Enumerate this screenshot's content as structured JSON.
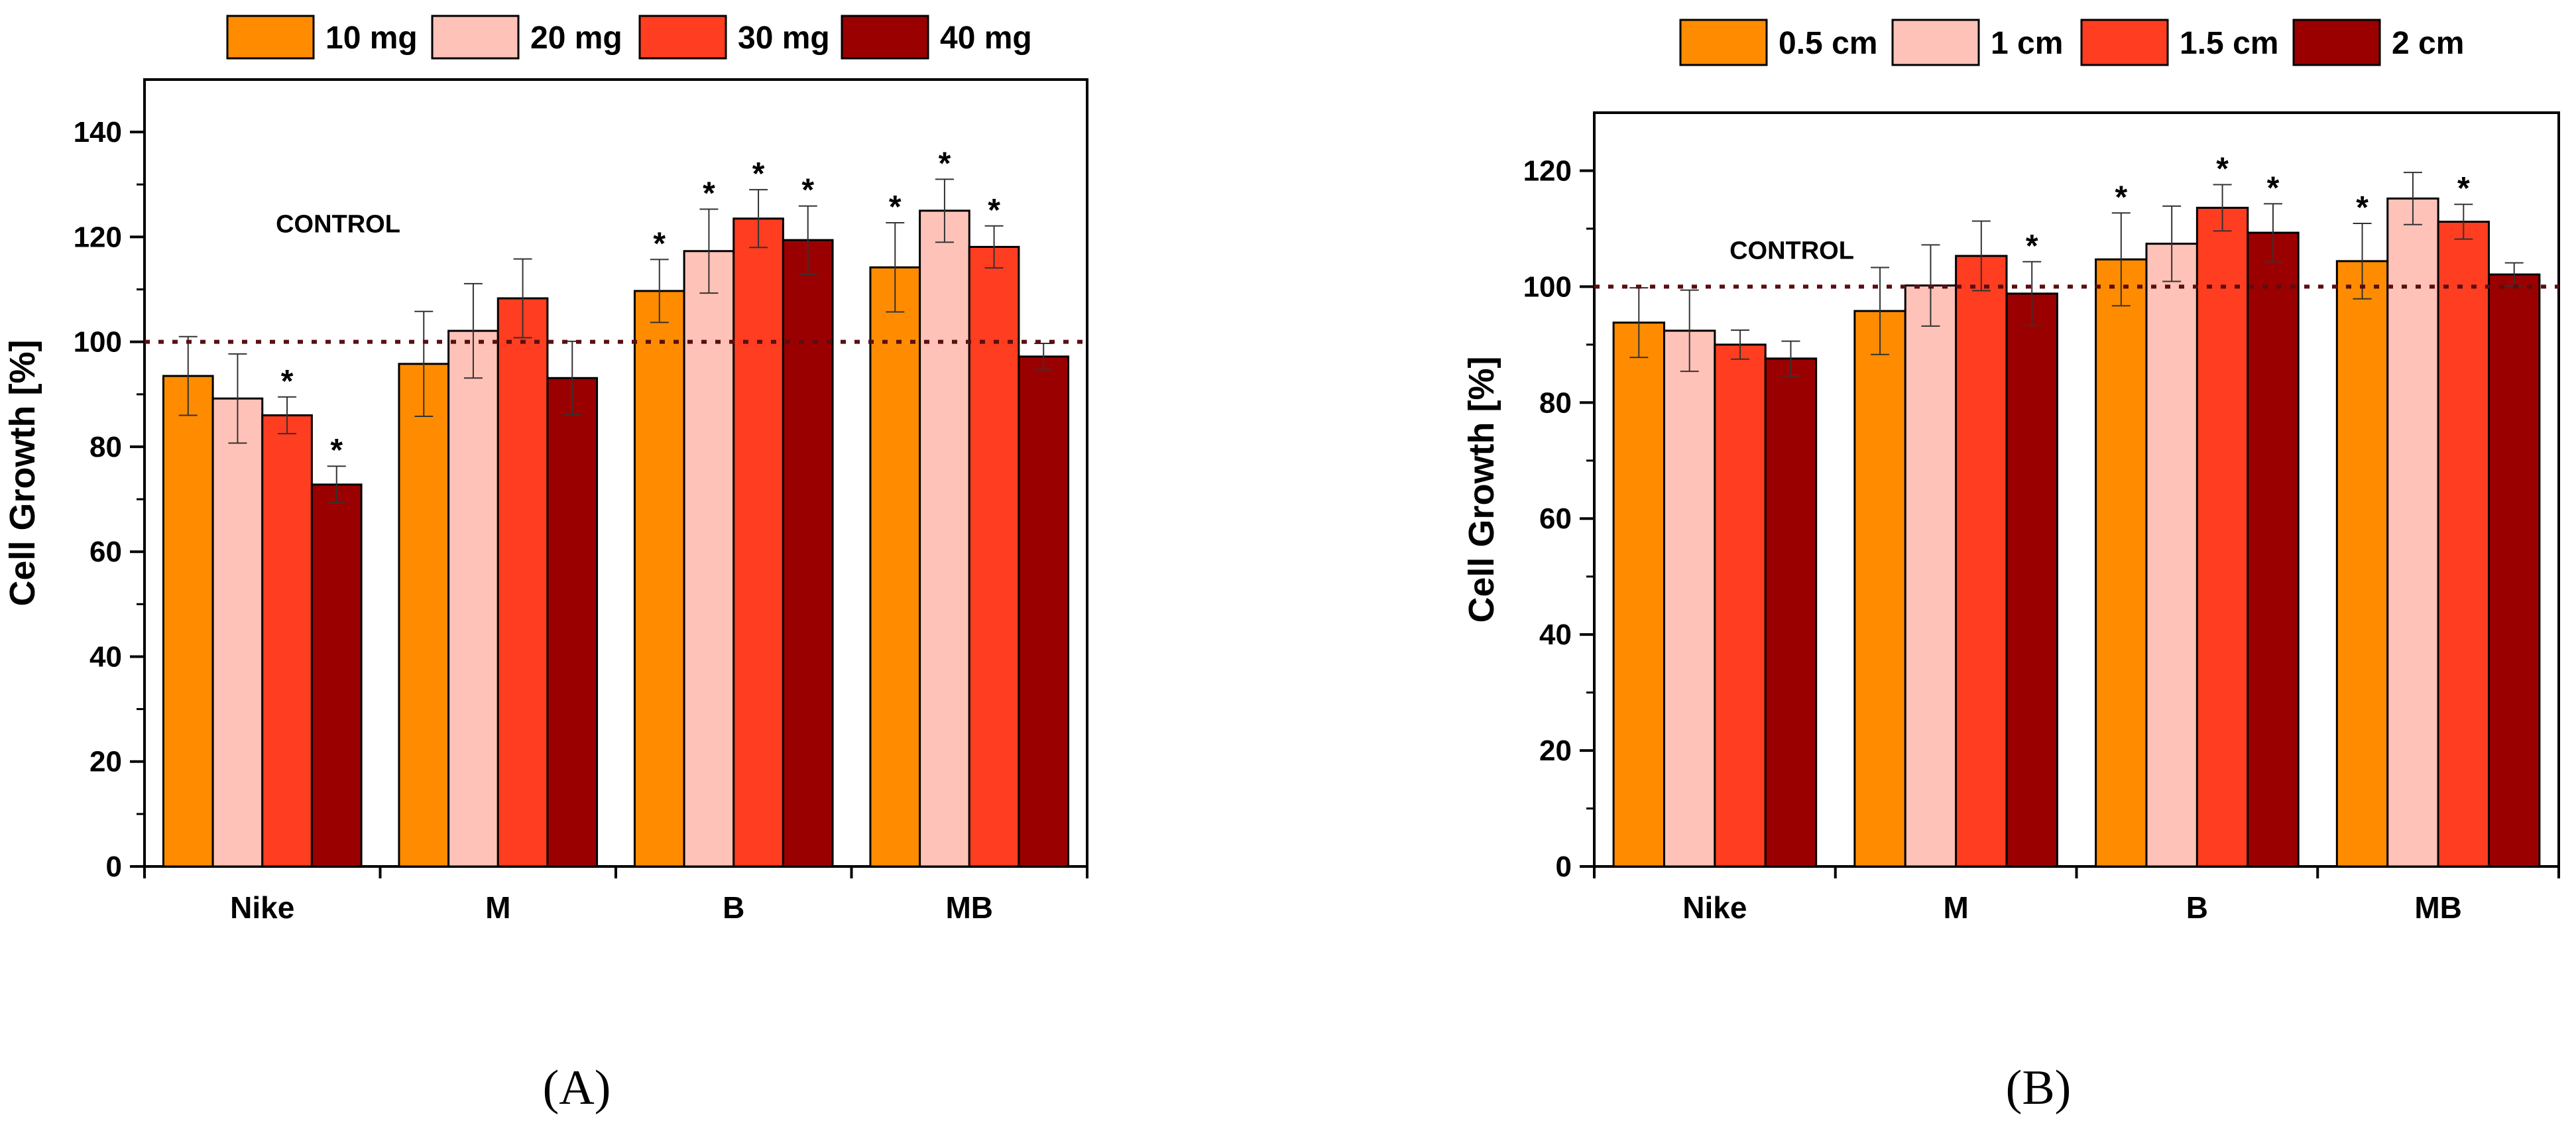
{
  "colors": [
    "#ff8c00",
    "#ffc2b8",
    "#ff3d20",
    "#9b0000"
  ],
  "chart_data": [
    {
      "type": "bar",
      "panel_label": "(A)",
      "ylabel": "Cell Growth [%]",
      "ylim": [
        0,
        150
      ],
      "yticks": [
        0,
        20,
        40,
        60,
        80,
        100,
        120,
        140
      ],
      "categories": [
        "Nike",
        "M",
        "B",
        "MB"
      ],
      "series": [
        {
          "name": "10 mg",
          "values": [
            93.5,
            95.8,
            109.7,
            114.2
          ],
          "errors": [
            7.5,
            10.0,
            6.0,
            8.5
          ],
          "significant": [
            false,
            false,
            true,
            true
          ]
        },
        {
          "name": "20 mg",
          "values": [
            89.2,
            102.1,
            117.3,
            125.0
          ],
          "errors": [
            8.5,
            9.0,
            8.0,
            6.0
          ],
          "significant": [
            false,
            false,
            true,
            true
          ]
        },
        {
          "name": "30 mg",
          "values": [
            86.0,
            108.3,
            123.5,
            118.1
          ],
          "errors": [
            3.5,
            7.5,
            5.5,
            4.0
          ],
          "significant": [
            true,
            false,
            true,
            true
          ]
        },
        {
          "name": "40 mg",
          "values": [
            72.8,
            93.1,
            119.4,
            97.2
          ],
          "errors": [
            3.5,
            7.0,
            6.5,
            2.5
          ],
          "significant": [
            true,
            false,
            true,
            false
          ]
        }
      ],
      "reference": {
        "value": 100,
        "label": "CONTROL"
      },
      "legend": "top"
    },
    {
      "type": "bar",
      "panel_label": "(B)",
      "ylabel": "Cell Growth [%]",
      "ylim": [
        0,
        130
      ],
      "yticks": [
        0,
        20,
        40,
        60,
        80,
        100,
        120
      ],
      "categories": [
        "Nike",
        "M",
        "B",
        "MB"
      ],
      "series": [
        {
          "name": "0.5 cm",
          "values": [
            93.8,
            95.8,
            104.7,
            104.4
          ],
          "errors": [
            6.0,
            7.5,
            8.0,
            6.5
          ],
          "significant": [
            false,
            false,
            true,
            true
          ]
        },
        {
          "name": "1 cm",
          "values": [
            92.4,
            100.2,
            107.4,
            115.2
          ],
          "errors": [
            7.0,
            7.0,
            6.5,
            4.5
          ],
          "significant": [
            false,
            false,
            false,
            false
          ]
        },
        {
          "name": "1.5 cm",
          "values": [
            90.0,
            105.3,
            113.6,
            111.2
          ],
          "errors": [
            2.5,
            6.0,
            4.0,
            3.0
          ],
          "significant": [
            false,
            false,
            true,
            true
          ]
        },
        {
          "name": "2 cm",
          "values": [
            87.6,
            98.8,
            109.3,
            102.1
          ],
          "errors": [
            3.0,
            5.5,
            5.0,
            2.0
          ],
          "significant": [
            false,
            true,
            true,
            false
          ]
        }
      ],
      "reference": {
        "value": 100,
        "label": "CONTROL"
      },
      "legend": "top"
    }
  ]
}
